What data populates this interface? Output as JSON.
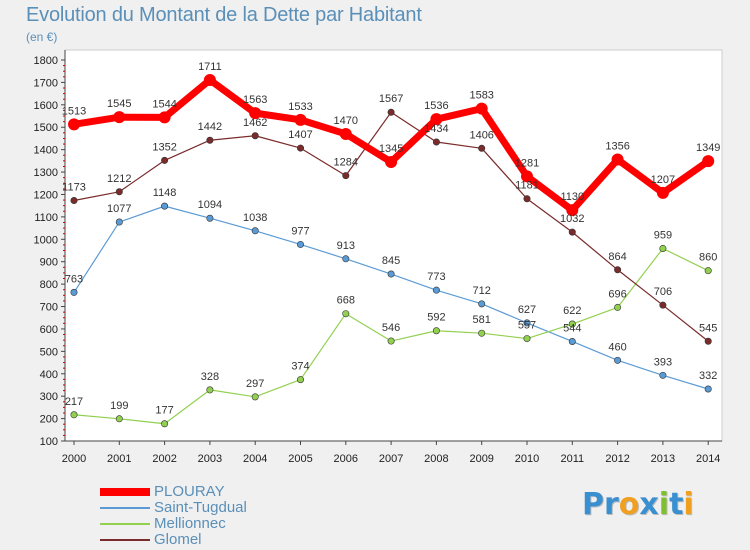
{
  "title": "Evolution du Montant de la Dette par Habitant",
  "subtitle": "(en €)",
  "logo": {
    "letters": [
      {
        "ch": "P",
        "color": "#3a8fd0"
      },
      {
        "ch": "r",
        "color": "#3a8fd0"
      },
      {
        "ch": "o",
        "color": "#f0a020"
      },
      {
        "ch": "x",
        "color": "#3a8fd0"
      },
      {
        "ch": "i",
        "color": "#80c030"
      },
      {
        "ch": "t",
        "color": "#3a8fd0"
      },
      {
        "ch": "i",
        "color": "#f0a020"
      }
    ]
  },
  "chart_data": {
    "type": "line",
    "x": [
      "2000",
      "2001",
      "2002",
      "2003",
      "2004",
      "2005",
      "2006",
      "2007",
      "2008",
      "2009",
      "2010",
      "2011",
      "2012",
      "2013",
      "2014"
    ],
    "ylim": [
      100,
      1800
    ],
    "yticks": [
      100,
      200,
      300,
      400,
      500,
      600,
      700,
      800,
      900,
      1000,
      1100,
      1200,
      1300,
      1400,
      1500,
      1600,
      1700,
      1800
    ],
    "grid": false,
    "legend_position": "bottom-left",
    "series": [
      {
        "name": "PLOURAY",
        "color": "#ff0000",
        "values": [
          1513,
          1545,
          1544,
          1711,
          1563,
          1533,
          1470,
          1345,
          1536,
          1583,
          1281,
          1130,
          1356,
          1207,
          1349
        ]
      },
      {
        "name": "Saint-Tugdual",
        "color": "#5b9bd5",
        "values": [
          763,
          1077,
          1148,
          1094,
          1038,
          977,
          913,
          845,
          773,
          712,
          627,
          544,
          460,
          393,
          332
        ]
      },
      {
        "name": "Mellionnec",
        "color": "#92d050",
        "values": [
          217,
          199,
          177,
          328,
          297,
          374,
          668,
          546,
          592,
          581,
          557,
          622,
          696,
          959,
          860
        ]
      },
      {
        "name": "Glomel",
        "color": "#7a2b2b",
        "values": [
          1173,
          1212,
          1352,
          1442,
          1462,
          1407,
          1284,
          1567,
          1434,
          1406,
          1181,
          1032,
          864,
          706,
          545
        ]
      }
    ]
  }
}
